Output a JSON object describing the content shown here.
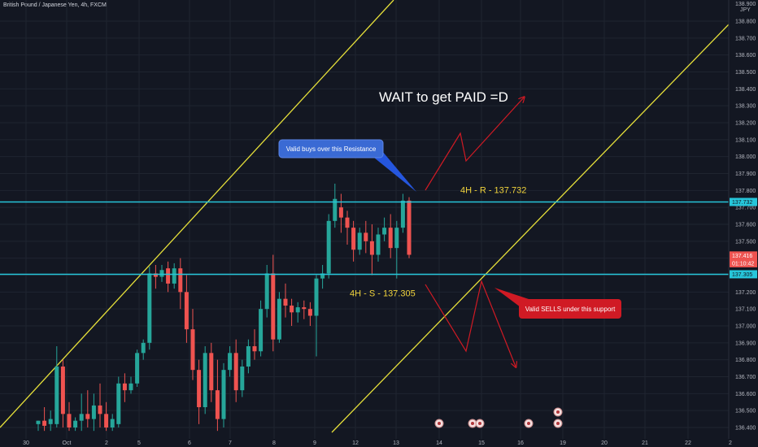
{
  "header": {
    "symbol_title": "British Pound / Japanese Yen, 4h, FXCM"
  },
  "colors": {
    "background": "#131722",
    "grid": "#1f2430",
    "up": "#26a69a",
    "down": "#ef5350",
    "level_line": "#26c6da",
    "channel": "#e6e03a",
    "annotation_red": "#d01a24",
    "label_yellow": "#f0d33c",
    "axis_text": "#b2b5be"
  },
  "chart_data": {
    "type": "candlestick",
    "title": "British Pound / Japanese Yen, 4h, FXCM",
    "y_axis": {
      "unit": "JPY",
      "ylim": [
        136.38,
        138.92
      ],
      "ticks": [
        136.4,
        136.5,
        136.6,
        136.7,
        136.8,
        136.9,
        137.0,
        137.1,
        137.2,
        137.3,
        137.4,
        137.5,
        137.6,
        137.7,
        137.8,
        137.9,
        138.0,
        138.1,
        138.2,
        138.3,
        138.4,
        138.5,
        138.6,
        138.7,
        138.8
      ],
      "tick_labels": [
        "136.400",
        "136.500",
        "136.600",
        "136.700",
        "136.800",
        "136.900",
        "137.000",
        "137.100",
        "137.200",
        "137.300",
        "137.400",
        "137.500",
        "137.600",
        "137.700",
        "137.800",
        "137.900",
        "138.000",
        "138.100",
        "138.200",
        "138.300",
        "138.400",
        "138.500",
        "138.600",
        "138.700",
        "138.800"
      ],
      "top_label": "138.900",
      "price_tags": [
        {
          "label": "137.732",
          "value": 137.732,
          "color": "#26c6da"
        },
        {
          "label": "137.416",
          "value": 137.416,
          "color": "#ef5350"
        },
        {
          "label": "01:10:42",
          "value": 137.37,
          "color": "#ef5350"
        },
        {
          "label": "137.305",
          "value": 137.305,
          "color": "#26c6da"
        }
      ]
    },
    "x_axis": {
      "labels": [
        "30",
        "Oct",
        "2",
        "5",
        "6",
        "7",
        "8",
        "9",
        "12",
        "13",
        "14",
        "15",
        "16",
        "19",
        "20",
        "21",
        "22",
        "2"
      ]
    },
    "candles": [
      {
        "o": 136.42,
        "h": 136.44,
        "c": 136.44,
        "l": 136.38
      },
      {
        "o": 136.44,
        "h": 136.52,
        "c": 136.41,
        "l": 136.38
      },
      {
        "o": 136.42,
        "h": 136.5,
        "c": 136.45,
        "l": 136.38
      },
      {
        "o": 136.42,
        "h": 136.88,
        "c": 136.76,
        "l": 136.4
      },
      {
        "o": 136.76,
        "h": 136.8,
        "c": 136.48,
        "l": 136.4
      },
      {
        "o": 136.48,
        "h": 136.55,
        "c": 136.4,
        "l": 136.38
      },
      {
        "o": 136.4,
        "h": 136.46,
        "c": 136.44,
        "l": 136.38
      },
      {
        "o": 136.44,
        "h": 136.6,
        "c": 136.48,
        "l": 136.38
      },
      {
        "o": 136.48,
        "h": 136.62,
        "c": 136.45,
        "l": 136.4
      },
      {
        "o": 136.45,
        "h": 136.6,
        "c": 136.53,
        "l": 136.38
      },
      {
        "o": 136.53,
        "h": 136.66,
        "c": 136.48,
        "l": 136.4
      },
      {
        "o": 136.48,
        "h": 136.55,
        "c": 136.4,
        "l": 136.38
      },
      {
        "o": 136.4,
        "h": 136.48,
        "c": 136.45,
        "l": 136.38
      },
      {
        "o": 136.42,
        "h": 136.7,
        "c": 136.66,
        "l": 136.4
      },
      {
        "o": 136.66,
        "h": 136.72,
        "c": 136.62,
        "l": 136.55
      },
      {
        "o": 136.62,
        "h": 136.7,
        "c": 136.66,
        "l": 136.6
      },
      {
        "o": 136.66,
        "h": 136.86,
        "c": 136.84,
        "l": 136.64
      },
      {
        "o": 136.84,
        "h": 136.92,
        "c": 136.9,
        "l": 136.8
      },
      {
        "o": 136.9,
        "h": 137.35,
        "c": 137.31,
        "l": 136.86
      },
      {
        "o": 137.31,
        "h": 137.36,
        "c": 137.29,
        "l": 137.22
      },
      {
        "o": 137.29,
        "h": 137.36,
        "c": 137.33,
        "l": 137.26
      },
      {
        "o": 137.34,
        "h": 137.38,
        "c": 137.25,
        "l": 137.2
      },
      {
        "o": 137.25,
        "h": 137.37,
        "c": 137.34,
        "l": 137.22
      },
      {
        "o": 137.34,
        "h": 137.4,
        "c": 137.2,
        "l": 137.1
      },
      {
        "o": 137.2,
        "h": 137.3,
        "c": 136.98,
        "l": 136.9
      },
      {
        "o": 136.98,
        "h": 137.1,
        "c": 136.74,
        "l": 136.68
      },
      {
        "o": 136.74,
        "h": 136.8,
        "c": 136.52,
        "l": 136.42
      },
      {
        "o": 136.52,
        "h": 136.88,
        "c": 136.84,
        "l": 136.48
      },
      {
        "o": 136.84,
        "h": 136.9,
        "c": 136.62,
        "l": 136.55
      },
      {
        "o": 136.62,
        "h": 136.8,
        "c": 136.45,
        "l": 136.38
      },
      {
        "o": 136.45,
        "h": 136.78,
        "c": 136.74,
        "l": 136.4
      },
      {
        "o": 136.74,
        "h": 136.88,
        "c": 136.84,
        "l": 136.7
      },
      {
        "o": 136.84,
        "h": 136.92,
        "c": 136.62,
        "l": 136.55
      },
      {
        "o": 136.62,
        "h": 136.8,
        "c": 136.76,
        "l": 136.58
      },
      {
        "o": 136.76,
        "h": 136.92,
        "c": 136.88,
        "l": 136.72
      },
      {
        "o": 136.88,
        "h": 136.98,
        "c": 136.85,
        "l": 136.8
      },
      {
        "o": 136.85,
        "h": 137.15,
        "c": 137.1,
        "l": 136.82
      },
      {
        "o": 137.1,
        "h": 137.36,
        "c": 137.31,
        "l": 137.05
      },
      {
        "o": 137.31,
        "h": 137.42,
        "c": 136.92,
        "l": 136.85
      },
      {
        "o": 136.92,
        "h": 137.2,
        "c": 137.16,
        "l": 136.9
      },
      {
        "o": 137.16,
        "h": 137.25,
        "c": 137.12,
        "l": 137.05
      },
      {
        "o": 137.12,
        "h": 137.16,
        "c": 137.08,
        "l": 137.0
      },
      {
        "o": 137.08,
        "h": 137.14,
        "c": 137.11,
        "l": 137.02
      },
      {
        "o": 137.11,
        "h": 137.15,
        "c": 137.1,
        "l": 137.04
      },
      {
        "o": 137.1,
        "h": 137.14,
        "c": 137.06,
        "l": 137.0
      },
      {
        "o": 137.06,
        "h": 137.3,
        "c": 137.28,
        "l": 136.82
      },
      {
        "o": 137.28,
        "h": 137.36,
        "c": 137.31,
        "l": 137.22
      },
      {
        "o": 137.31,
        "h": 137.66,
        "c": 137.62,
        "l": 137.28
      },
      {
        "o": 137.62,
        "h": 137.84,
        "c": 137.75,
        "l": 137.58
      },
      {
        "o": 137.7,
        "h": 137.78,
        "c": 137.64,
        "l": 137.55
      },
      {
        "o": 137.64,
        "h": 137.68,
        "c": 137.58,
        "l": 137.48
      },
      {
        "o": 137.58,
        "h": 137.62,
        "c": 137.45,
        "l": 137.38
      },
      {
        "o": 137.45,
        "h": 137.58,
        "c": 137.55,
        "l": 137.42
      },
      {
        "o": 137.55,
        "h": 137.62,
        "c": 137.5,
        "l": 137.43
      },
      {
        "o": 137.5,
        "h": 137.6,
        "c": 137.42,
        "l": 137.3
      },
      {
        "o": 137.42,
        "h": 137.58,
        "c": 137.54,
        "l": 137.38
      },
      {
        "o": 137.54,
        "h": 137.64,
        "c": 137.58,
        "l": 137.5
      },
      {
        "o": 137.58,
        "h": 137.66,
        "c": 137.46,
        "l": 137.4
      },
      {
        "o": 137.46,
        "h": 137.62,
        "c": 137.58,
        "l": 137.28
      },
      {
        "o": 137.58,
        "h": 137.78,
        "c": 137.74,
        "l": 137.55
      },
      {
        "o": 137.74,
        "h": 137.76,
        "c": 137.42,
        "l": 137.4
      }
    ],
    "levels": [
      {
        "name": "resistance",
        "value": 137.732,
        "label": "4H - R - 137.732"
      },
      {
        "name": "support",
        "value": 137.305,
        "label": "4H - S - 137.305"
      }
    ],
    "annotations": {
      "headline": "WAIT to get PAID =D",
      "buys_callout": "Valid buys over this Resistance",
      "sells_callout": "Valid SELLS under this support"
    }
  }
}
